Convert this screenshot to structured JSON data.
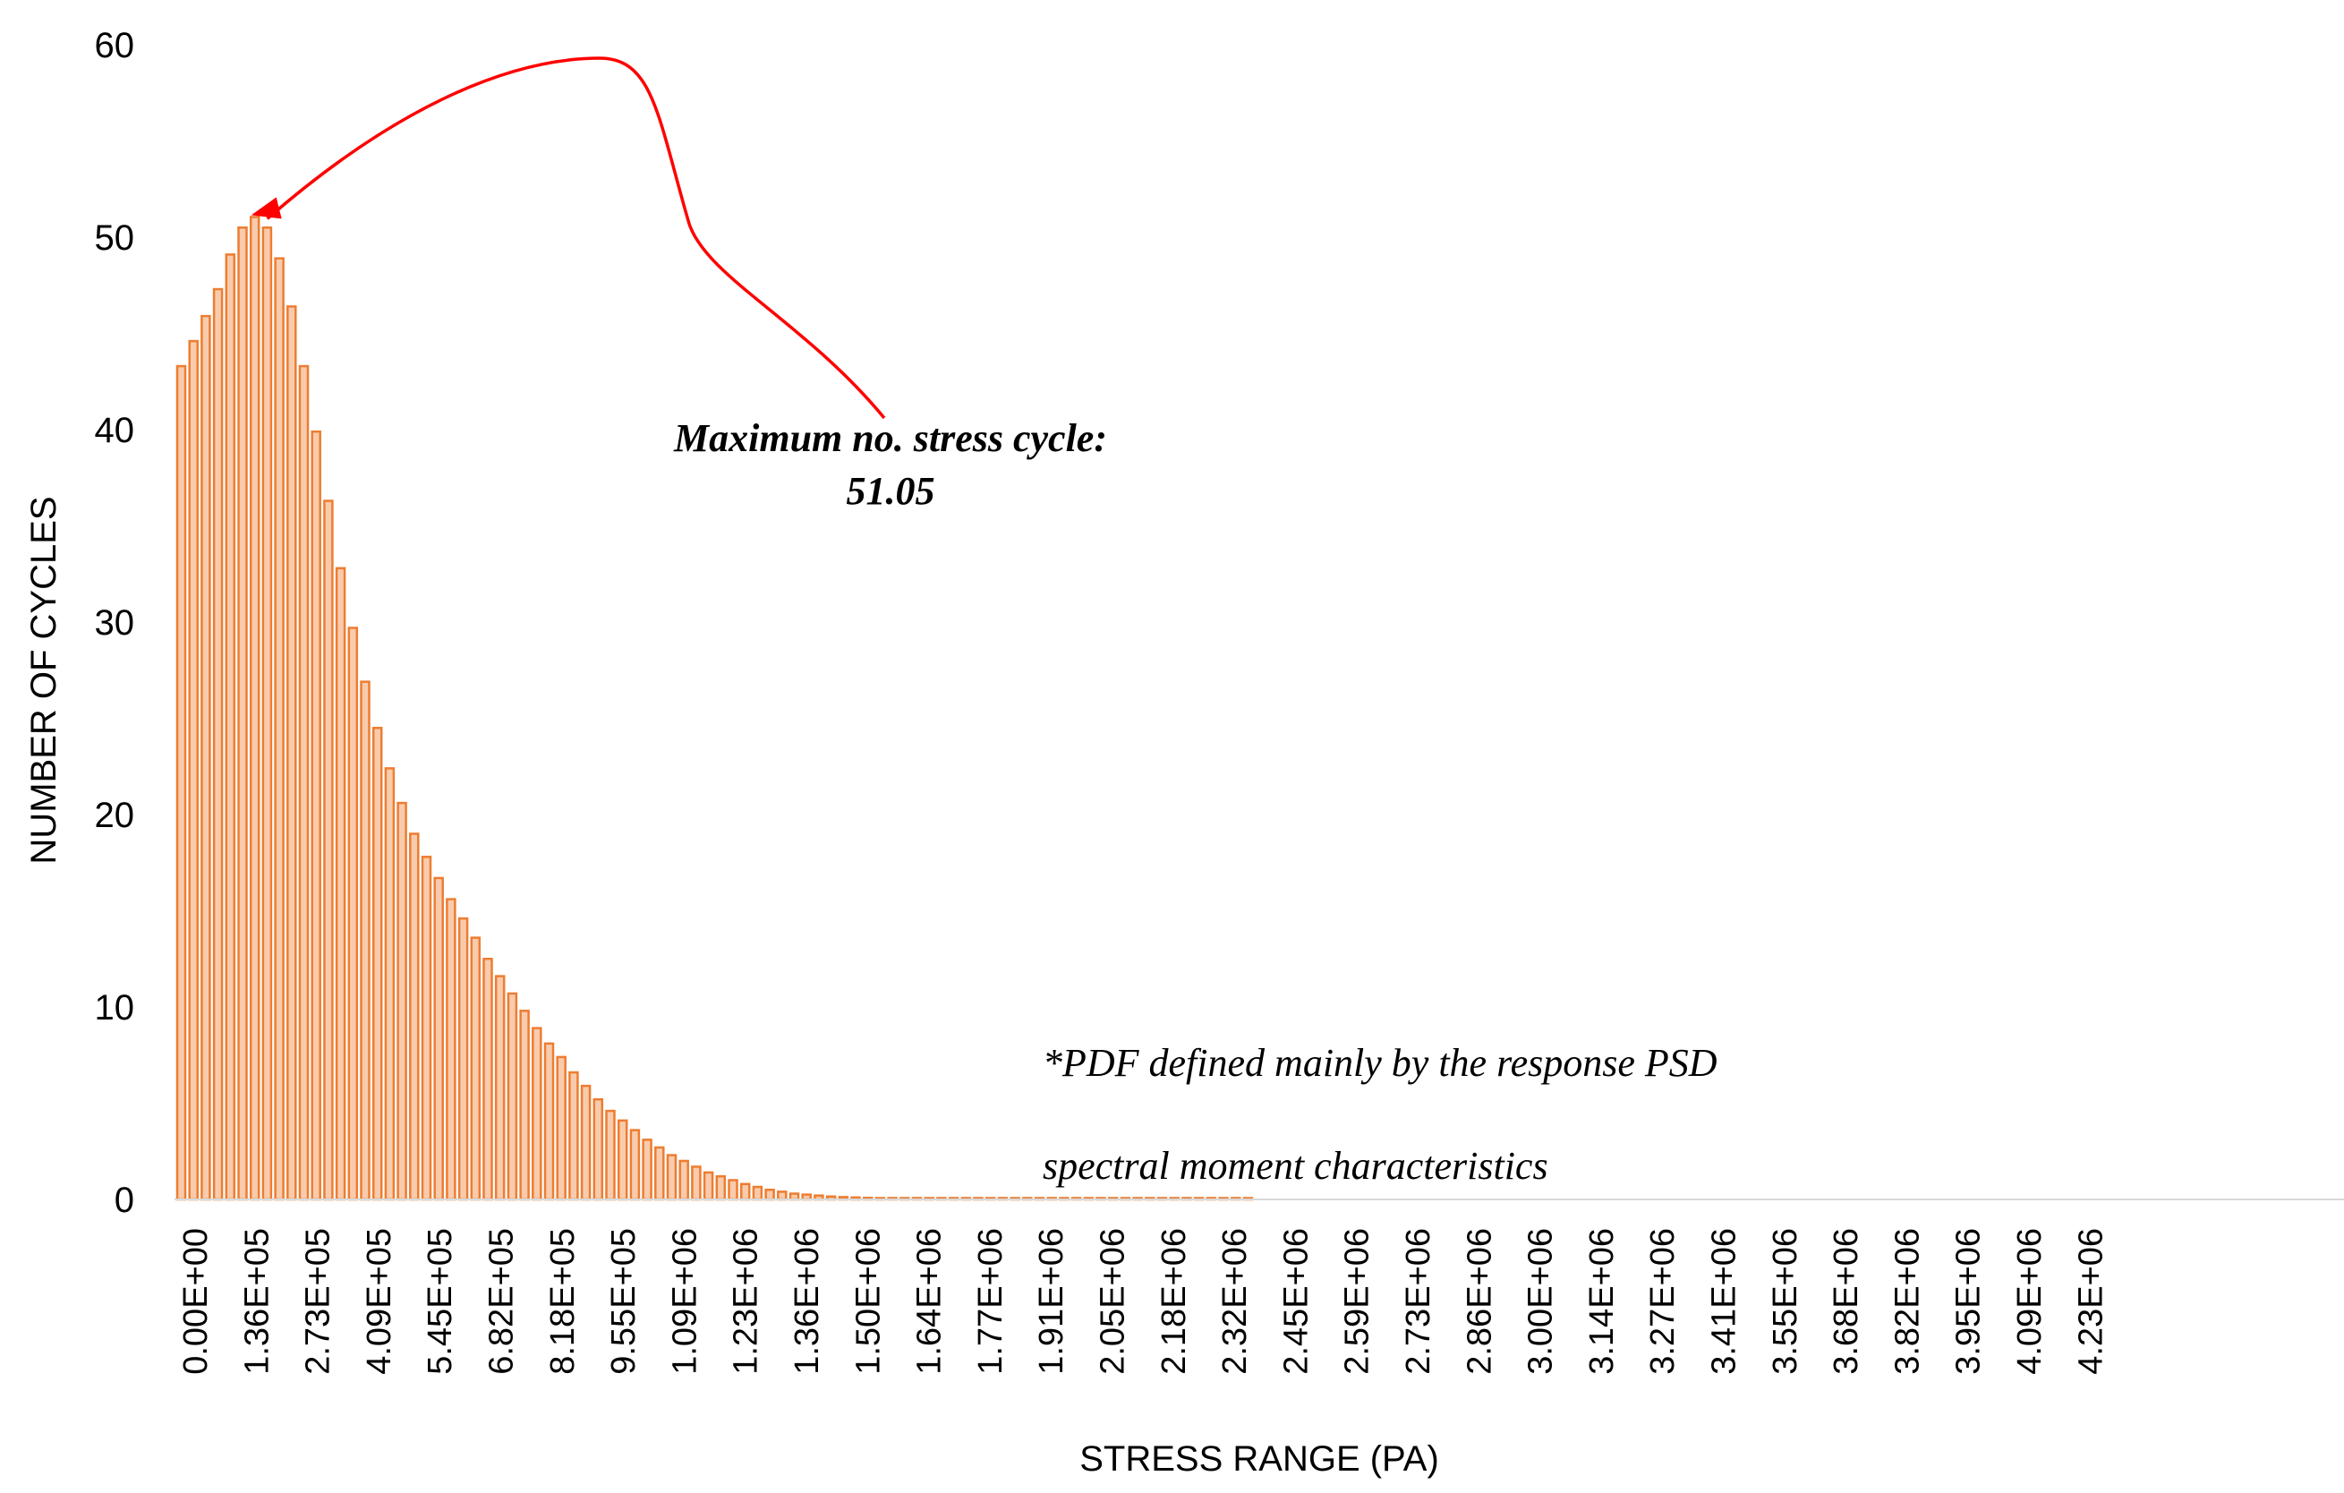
{
  "chart_data": {
    "type": "bar",
    "title": "",
    "xlabel": "STRESS RANGE (PA)",
    "ylabel": "NUMBER OF CYCLES",
    "ylim": [
      0,
      60
    ],
    "yticks": [
      "0",
      "10",
      "20",
      "30",
      "40",
      "50",
      "60"
    ],
    "grid": false,
    "legend": "none",
    "bar_color": "#ed7d31",
    "bar_fill": "#f8cbad",
    "annotation_color": "#ff0000",
    "x_tick_labels": [
      "0.00E+00",
      "1.36E+05",
      "2.73E+05",
      "4.09E+05",
      "5.45E+05",
      "6.82E+05",
      "8.18E+05",
      "9.55E+05",
      "1.09E+06",
      "1.23E+06",
      "1.36E+06",
      "1.50E+06",
      "1.64E+06",
      "1.77E+06",
      "1.91E+06",
      "2.05E+06",
      "2.18E+06",
      "2.32E+06",
      "2.45E+06",
      "2.59E+06",
      "2.73E+06",
      "2.86E+06",
      "3.00E+06",
      "3.14E+06",
      "3.27E+06",
      "3.41E+06",
      "3.55E+06",
      "3.68E+06",
      "3.82E+06",
      "3.95E+06",
      "4.09E+06",
      "4.23E+06"
    ],
    "bin_width": 68200,
    "values": [
      43.3,
      44.6,
      45.9,
      47.3,
      49.1,
      50.5,
      51.05,
      50.5,
      48.9,
      46.4,
      43.3,
      39.9,
      36.3,
      32.8,
      29.7,
      26.9,
      24.5,
      22.4,
      20.6,
      19.0,
      17.8,
      16.7,
      15.6,
      14.6,
      13.6,
      12.5,
      11.6,
      10.7,
      9.8,
      8.9,
      8.1,
      7.4,
      6.6,
      5.9,
      5.2,
      4.6,
      4.1,
      3.6,
      3.1,
      2.7,
      2.3,
      2.0,
      1.7,
      1.4,
      1.2,
      1.0,
      0.8,
      0.65,
      0.5,
      0.4,
      0.3,
      0.25,
      0.2,
      0.15,
      0.12,
      0.1,
      0.08,
      0.06,
      0.05,
      0.04,
      0.03,
      0.02,
      0.02,
      0.01,
      0.01,
      0.01,
      0.01,
      0.005,
      0.005,
      0.005,
      0.005,
      0.004,
      0.004,
      0.003,
      0.003,
      0.003,
      0.002,
      0.002,
      0.002,
      0.002,
      0.001,
      0.001,
      0.001,
      0.001,
      0.001,
      0.001,
      0.001,
      0.001
    ],
    "annotations": [
      {
        "text_lines": [
          "Maximum no. stress cycle:",
          "51.05"
        ],
        "target_bar": 6
      },
      {
        "text_lines": [
          "*PDF  defined  mainly by the  response PSD",
          "spectral moment characteristics"
        ]
      }
    ]
  }
}
